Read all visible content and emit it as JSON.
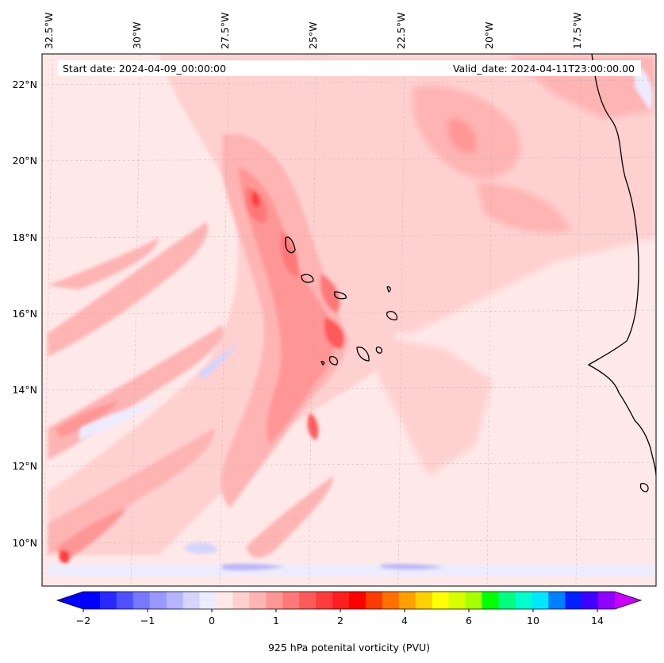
{
  "header": {
    "start_date": "Start date: 2024-04-09_00:00:00",
    "valid_date": "Valid_date: 2024-04-11T23:00:00.00"
  },
  "lon_labels": [
    "32.5°W",
    "30°W",
    "27.5°W",
    "25°W",
    "22.5°W",
    "20°W",
    "17.5°W"
  ],
  "lat_labels": [
    "22°N",
    "20°N",
    "18°N",
    "16°N",
    "14°N",
    "12°N",
    "10°N"
  ],
  "colorbar": {
    "label": "925 hPa potenital vorticity (PVU)",
    "tick_labels": [
      "−2",
      "−1",
      "0",
      "1",
      "2",
      "4",
      "6",
      "10",
      "14"
    ],
    "colors": [
      "#0000ff",
      "#2828ff",
      "#5050ff",
      "#7878ff",
      "#9898ff",
      "#b4b4ff",
      "#d4d4ff",
      "#ececff",
      "#ffe8e8",
      "#ffd0d0",
      "#ffb4b4",
      "#ff9696",
      "#ff7878",
      "#ff5a5a",
      "#ff3c3c",
      "#ff1e1e",
      "#ff0000",
      "#ff3c00",
      "#ff7000",
      "#ffa000",
      "#ffd000",
      "#ffff00",
      "#d8ff00",
      "#a8ff00",
      "#00ff00",
      "#00ff80",
      "#00ffcc",
      "#00e8ff",
      "#0080ff",
      "#0020ff",
      "#4000ff",
      "#9000ff"
    ],
    "under_color": "#0000ff",
    "over_color": "#cc00ff"
  },
  "map_colors": {
    "background": "#ffe8e8",
    "light": "#ffd0d0",
    "medium": "#ffb4b4",
    "strong": "#ff9696",
    "stronger": "#ff7878",
    "peak": "#ff3c3c",
    "negative": "#ececff",
    "negative_strong": "#b4b4ff",
    "coast": "#000000"
  }
}
